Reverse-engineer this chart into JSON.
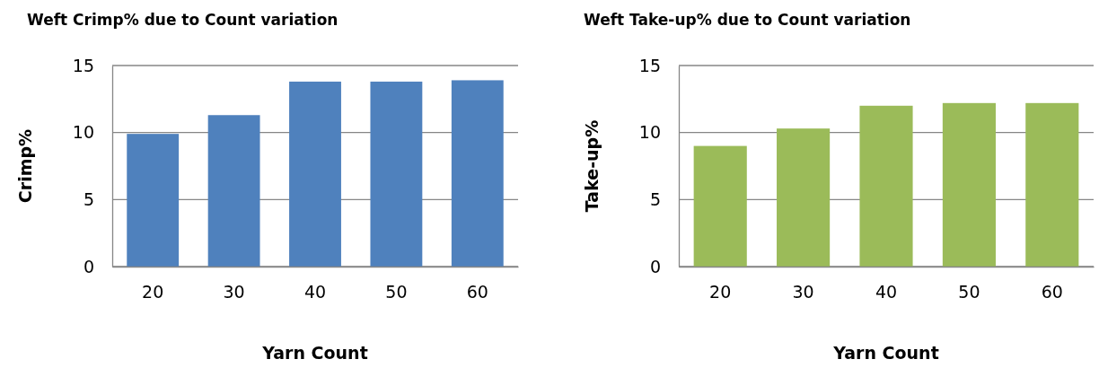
{
  "chart_data": [
    {
      "type": "bar",
      "title": "Weft Crimp% due to Count variation",
      "xlabel": "Yarn Count",
      "ylabel": "Crimp%",
      "categories": [
        "20",
        "30",
        "40",
        "50",
        "60"
      ],
      "values": [
        9.9,
        11.3,
        13.8,
        13.8,
        13.9
      ],
      "color": "#4f81bd",
      "ylim": [
        0,
        15
      ],
      "yticks": [
        0,
        5,
        10,
        15
      ],
      "grid": "y"
    },
    {
      "type": "bar",
      "title": "Weft Take-up% due to Count variation",
      "xlabel": "Yarn Count",
      "ylabel": "Take-up%",
      "categories": [
        "20",
        "30",
        "40",
        "50",
        "60"
      ],
      "values": [
        9.0,
        10.3,
        12.0,
        12.2,
        12.2
      ],
      "color": "#9bbb59",
      "ylim": [
        0,
        15
      ],
      "yticks": [
        0,
        5,
        10,
        15
      ],
      "grid": "y"
    }
  ]
}
